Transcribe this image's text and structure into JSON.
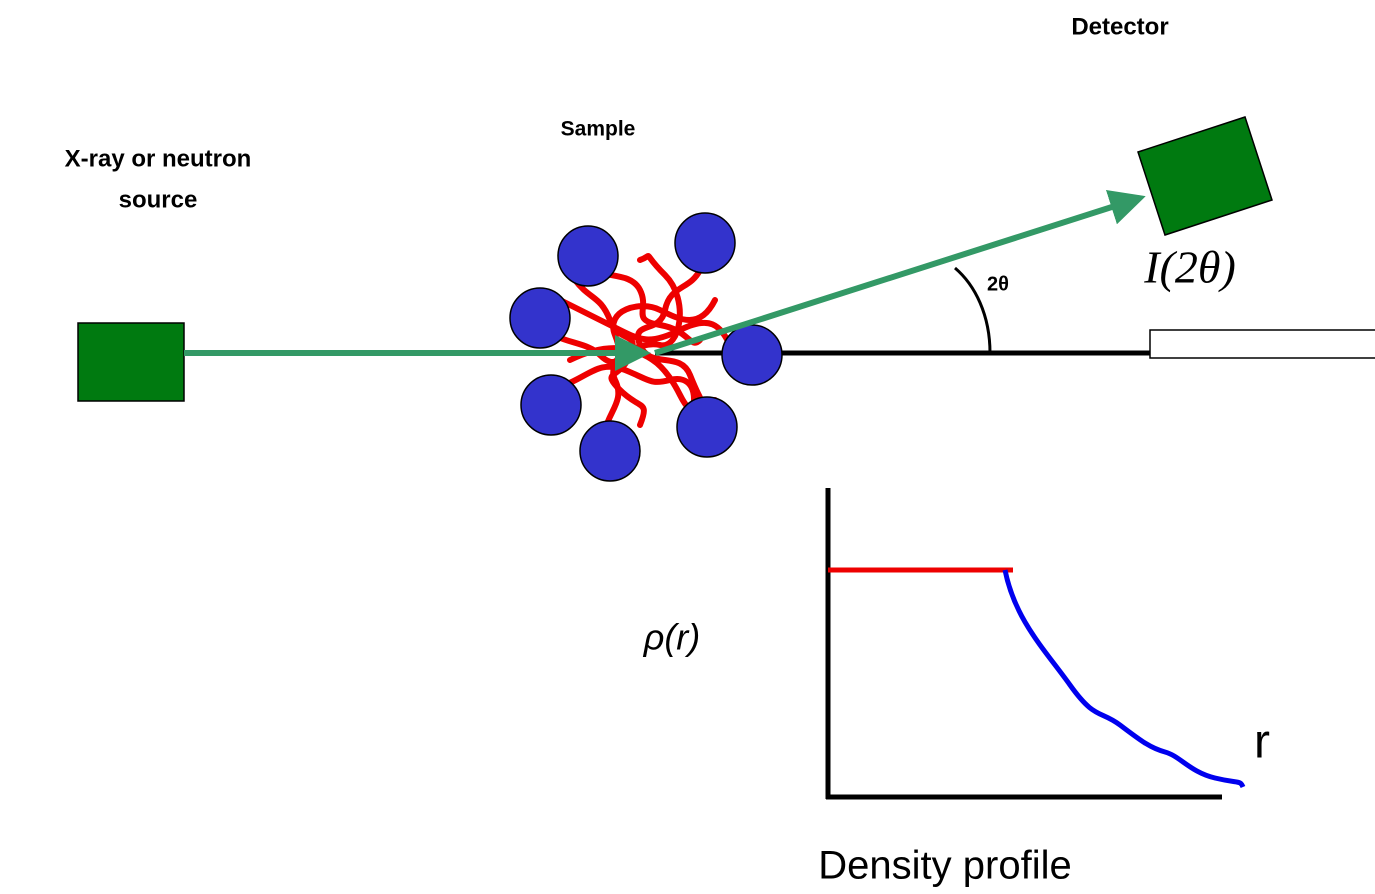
{
  "labels": {
    "detector": "Detector",
    "sample": "Sample",
    "source": [
      "X-ray or neutron",
      "source"
    ],
    "angle": "2θ",
    "intensity": "I(2θ)"
  },
  "density_plot": {
    "y_label": "ρ(r)",
    "x_label": "r",
    "caption": "Density profile"
  }
}
